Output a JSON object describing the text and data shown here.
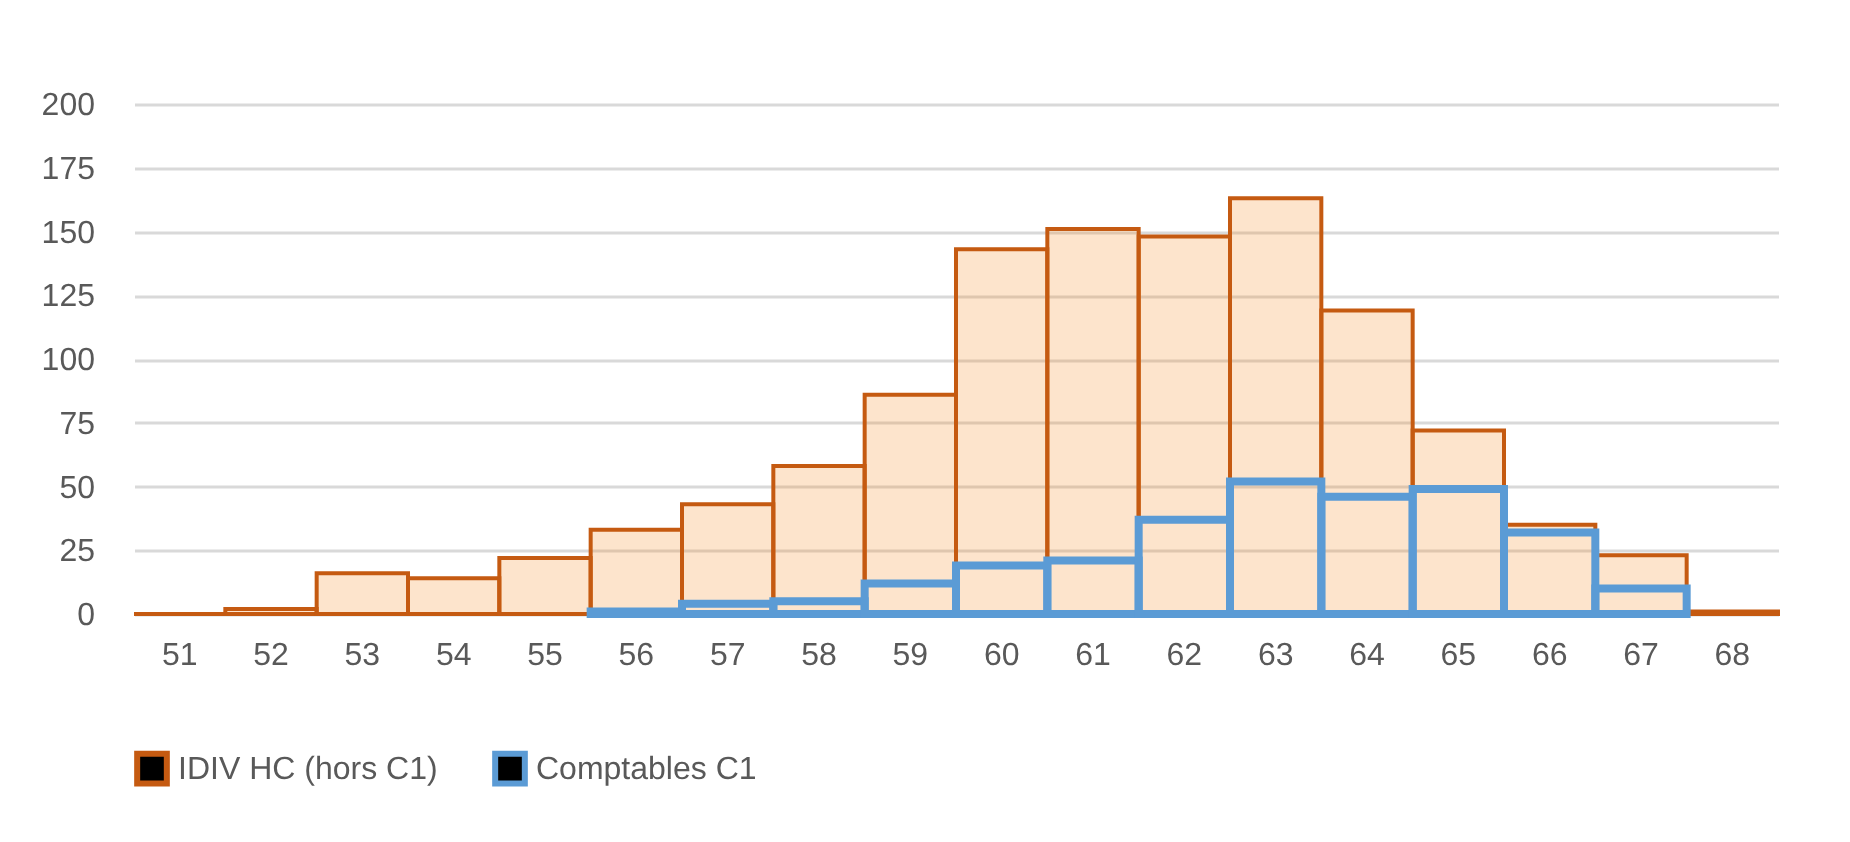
{
  "chart_data": {
    "type": "bar",
    "categories": [
      "51",
      "52",
      "53",
      "54",
      "55",
      "56",
      "57",
      "58",
      "59",
      "60",
      "61",
      "62",
      "63",
      "64",
      "65",
      "66",
      "67",
      "68"
    ],
    "series": [
      {
        "name": "IDIV HC (hors C1)",
        "color": "#c55a11",
        "values": [
          0,
          2,
          16,
          14,
          22,
          33,
          43,
          58,
          86,
          143,
          151,
          148,
          163,
          119,
          72,
          35,
          23,
          1
        ]
      },
      {
        "name": "Comptables C1",
        "color": "#5b9bd5",
        "values": [
          null,
          null,
          null,
          null,
          null,
          1,
          4,
          5,
          12,
          19,
          21,
          37,
          52,
          46,
          49,
          32,
          10,
          null
        ]
      }
    ],
    "ylim": [
      0,
      200
    ],
    "yticks": [
      0,
      25,
      50,
      75,
      100,
      125,
      150,
      175,
      200
    ],
    "grid": "y",
    "legend": "bottom"
  }
}
